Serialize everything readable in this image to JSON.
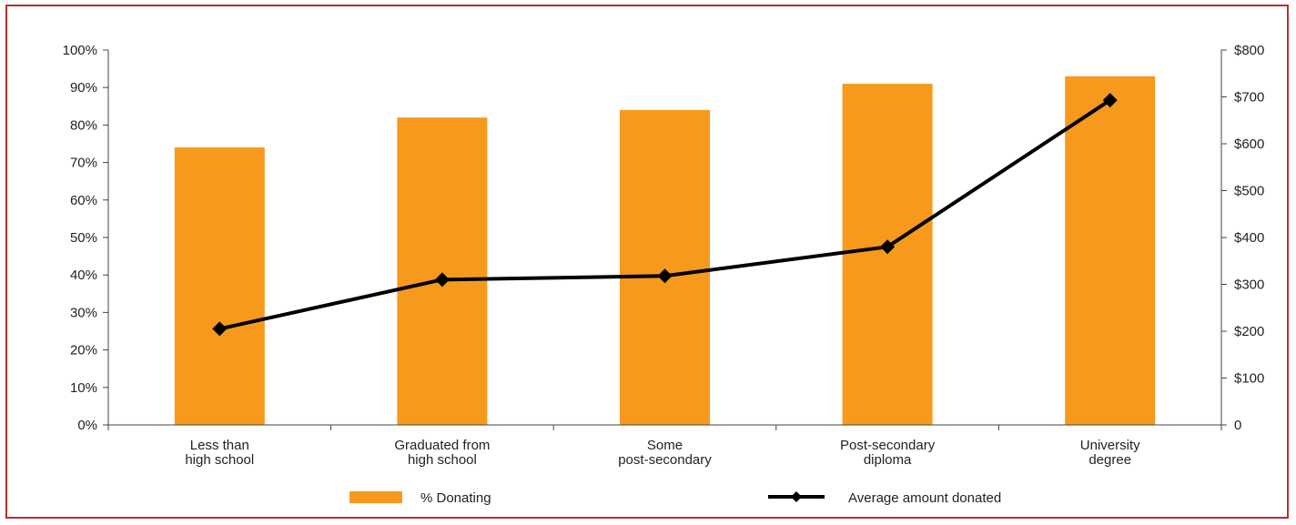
{
  "chart_data": {
    "type": "bar",
    "categories": [
      [
        "Less than",
        "high school"
      ],
      [
        "Graduated from",
        "high school"
      ],
      [
        "Some",
        "post-secondary"
      ],
      [
        "Post-secondary",
        "diploma"
      ],
      [
        "University",
        "degree"
      ]
    ],
    "series": [
      {
        "name": "% Donating",
        "type": "bar",
        "axis": "left",
        "color": "#f7991c",
        "values": [
          74,
          82,
          84,
          91,
          93
        ]
      },
      {
        "name": "Average amount donated",
        "type": "line",
        "axis": "right",
        "color": "#000000",
        "marker": "diamond",
        "values": [
          205,
          310,
          318,
          380,
          693
        ]
      }
    ],
    "y_left": {
      "ylim": [
        0,
        100
      ],
      "ticks": [
        0,
        10,
        20,
        30,
        40,
        50,
        60,
        70,
        80,
        90,
        100
      ],
      "tick_labels": [
        "0%",
        "10%",
        "20%",
        "30%",
        "40%",
        "50%",
        "60%",
        "70%",
        "80%",
        "90%",
        "100%"
      ]
    },
    "y_right": {
      "ylim": [
        0,
        800
      ],
      "ticks": [
        0,
        100,
        200,
        300,
        400,
        500,
        600,
        700,
        800
      ],
      "tick_labels": [
        "0",
        "$100",
        "$200",
        "$300",
        "$400",
        "$500",
        "$600",
        "$700",
        "$800"
      ]
    },
    "grid": false,
    "legend": "bottom",
    "frame_color": "#b5312a"
  }
}
